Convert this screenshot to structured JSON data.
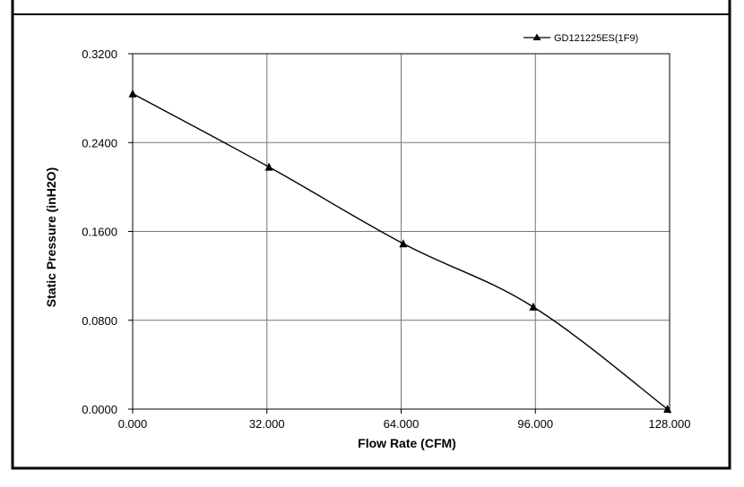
{
  "chart_data": {
    "type": "line",
    "title": "",
    "xlabel": "Flow Rate (CFM)",
    "ylabel": "Static Pressure (inH2O)",
    "xlim": [
      0,
      128
    ],
    "ylim": [
      0,
      0.32
    ],
    "x_ticks": [
      "0.000",
      "32.000",
      "64.000",
      "96.000",
      "128.000"
    ],
    "y_ticks": [
      "0.0000",
      "0.0800",
      "0.1600",
      "0.2400",
      "0.3200"
    ],
    "grid": true,
    "legend_position": "top-right",
    "series": [
      {
        "name": "GD121225ES(1F9)",
        "marker": "triangle",
        "color": "#000000",
        "x": [
          0,
          32.5,
          64.5,
          95.5,
          127.5
        ],
        "y": [
          0.284,
          0.218,
          0.149,
          0.092,
          0.0
        ]
      }
    ]
  }
}
